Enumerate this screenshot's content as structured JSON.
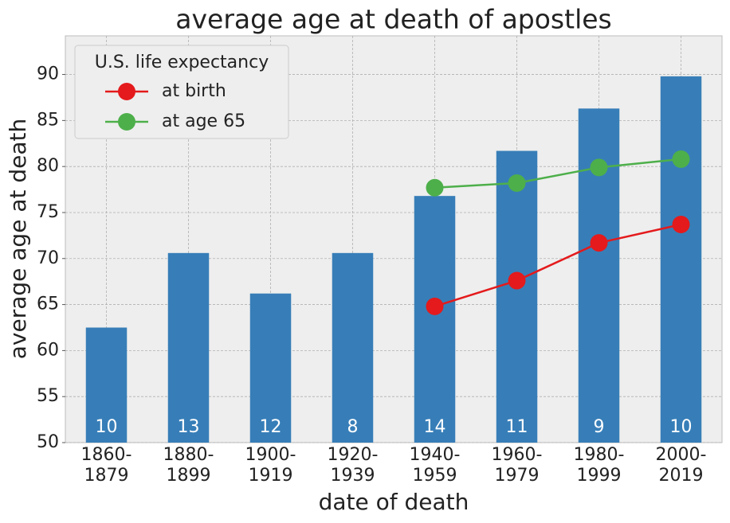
{
  "chart_data": {
    "type": "bar",
    "title": "average age at death of apostles",
    "xlabel": "date of death",
    "ylabel": "average age at death",
    "categories": [
      "1860-\n1879",
      "1880-\n1899",
      "1900-\n1919",
      "1920-\n1939",
      "1940-\n1959",
      "1960-\n1979",
      "1980-\n1999",
      "2000-\n2019"
    ],
    "values": [
      62.5,
      70.6,
      66.2,
      70.6,
      76.8,
      81.7,
      86.3,
      89.8
    ],
    "color": "#377eb8",
    "bar_labels": [
      "10",
      "13",
      "12",
      "8",
      "14",
      "11",
      "9",
      "10"
    ],
    "series": [
      {
        "name": "at birth",
        "color": "#e41a1c",
        "values": [
          null,
          null,
          null,
          null,
          64.8,
          67.6,
          71.7,
          73.7
        ]
      },
      {
        "name": "at age 65",
        "color": "#4daf4a",
        "values": [
          null,
          null,
          null,
          null,
          77.7,
          78.2,
          79.9,
          80.8
        ]
      }
    ],
    "legend_title": "U.S. life expectancy",
    "legend": "upper left",
    "ylim": [
      50,
      94.2
    ],
    "yticks": [
      50,
      55,
      60,
      65,
      70,
      75,
      80,
      85,
      90
    ],
    "grid": true
  }
}
